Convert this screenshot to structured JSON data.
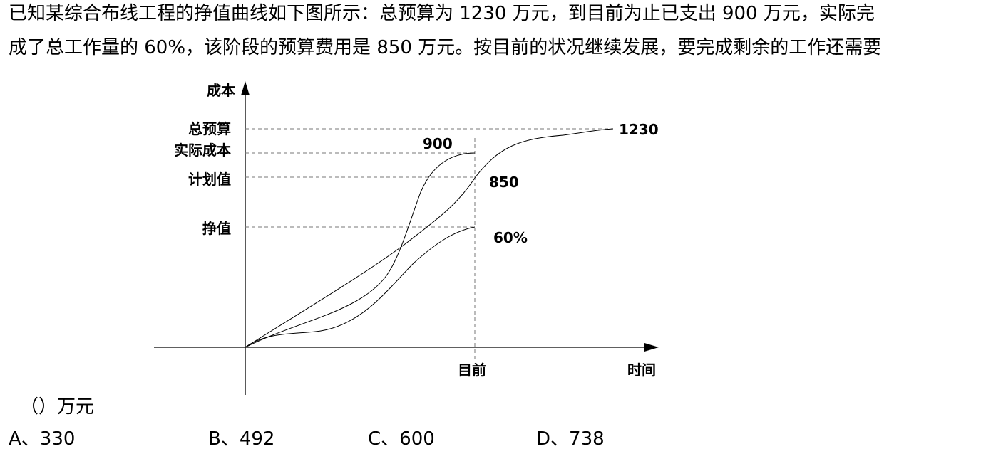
{
  "question": {
    "line1": "已知某综合布线工程的挣值曲线如下图所示：总预算为 1230 万元，到目前为止已支出 900 万元，实际完",
    "line2": "成了总工作量的 60%，该阶段的预算费用是 850 万元。按目前的状况继续发展，要完成剩余的工作还需要",
    "blank": "（）万元"
  },
  "diagram": {
    "y_axis_label": "成本",
    "x_axis_label": "时间",
    "current_label": "目前",
    "y_labels": {
      "total_budget": "总预算",
      "actual_cost": "实际成本",
      "planned_value": "计划值",
      "earned_value": "挣值"
    },
    "values": {
      "total_budget": "1230",
      "actual_cost": "900",
      "planned_value": "850",
      "earned_value": "60%"
    }
  },
  "options": [
    {
      "label": "A、330"
    },
    {
      "label": "B、492"
    },
    {
      "label": "C、600"
    },
    {
      "label": "D、738"
    }
  ]
}
